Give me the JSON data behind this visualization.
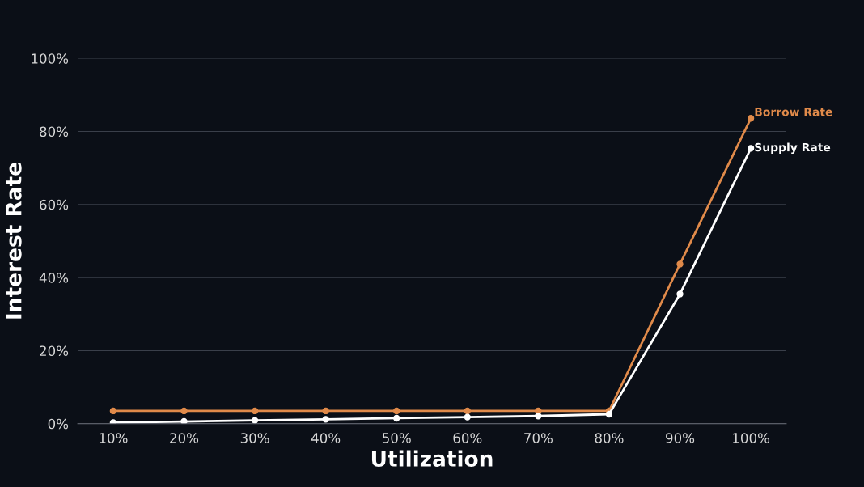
{
  "chart_data": {
    "type": "line",
    "xlabel": "Utilization",
    "ylabel": "Interest Rate",
    "categories": [
      "10%",
      "20%",
      "30%",
      "40%",
      "50%",
      "60%",
      "70%",
      "80%",
      "90%",
      "100%"
    ],
    "series": [
      {
        "name": "Borrow Rate",
        "color": "#e08a4a",
        "values": [
          3.5,
          3.5,
          3.5,
          3.5,
          3.5,
          3.5,
          3.5,
          3.5,
          43.7,
          83.6
        ]
      },
      {
        "name": "Supply Rate",
        "color": "#ffffff",
        "values": [
          0.3,
          0.6,
          0.9,
          1.2,
          1.5,
          1.8,
          2.1,
          2.6,
          35.5,
          75.4
        ]
      }
    ],
    "ylim": [
      0,
      100
    ],
    "yticks": [
      {
        "value": 0,
        "label": "0%"
      },
      {
        "value": 20,
        "label": "20%"
      },
      {
        "value": 40,
        "label": "40%"
      },
      {
        "value": 60,
        "label": "60%"
      },
      {
        "value": 80,
        "label": "80%"
      },
      {
        "value": 100,
        "label": "100%"
      }
    ],
    "grid": "y",
    "marker": "circle",
    "line_style": "solid",
    "legend": false
  }
}
